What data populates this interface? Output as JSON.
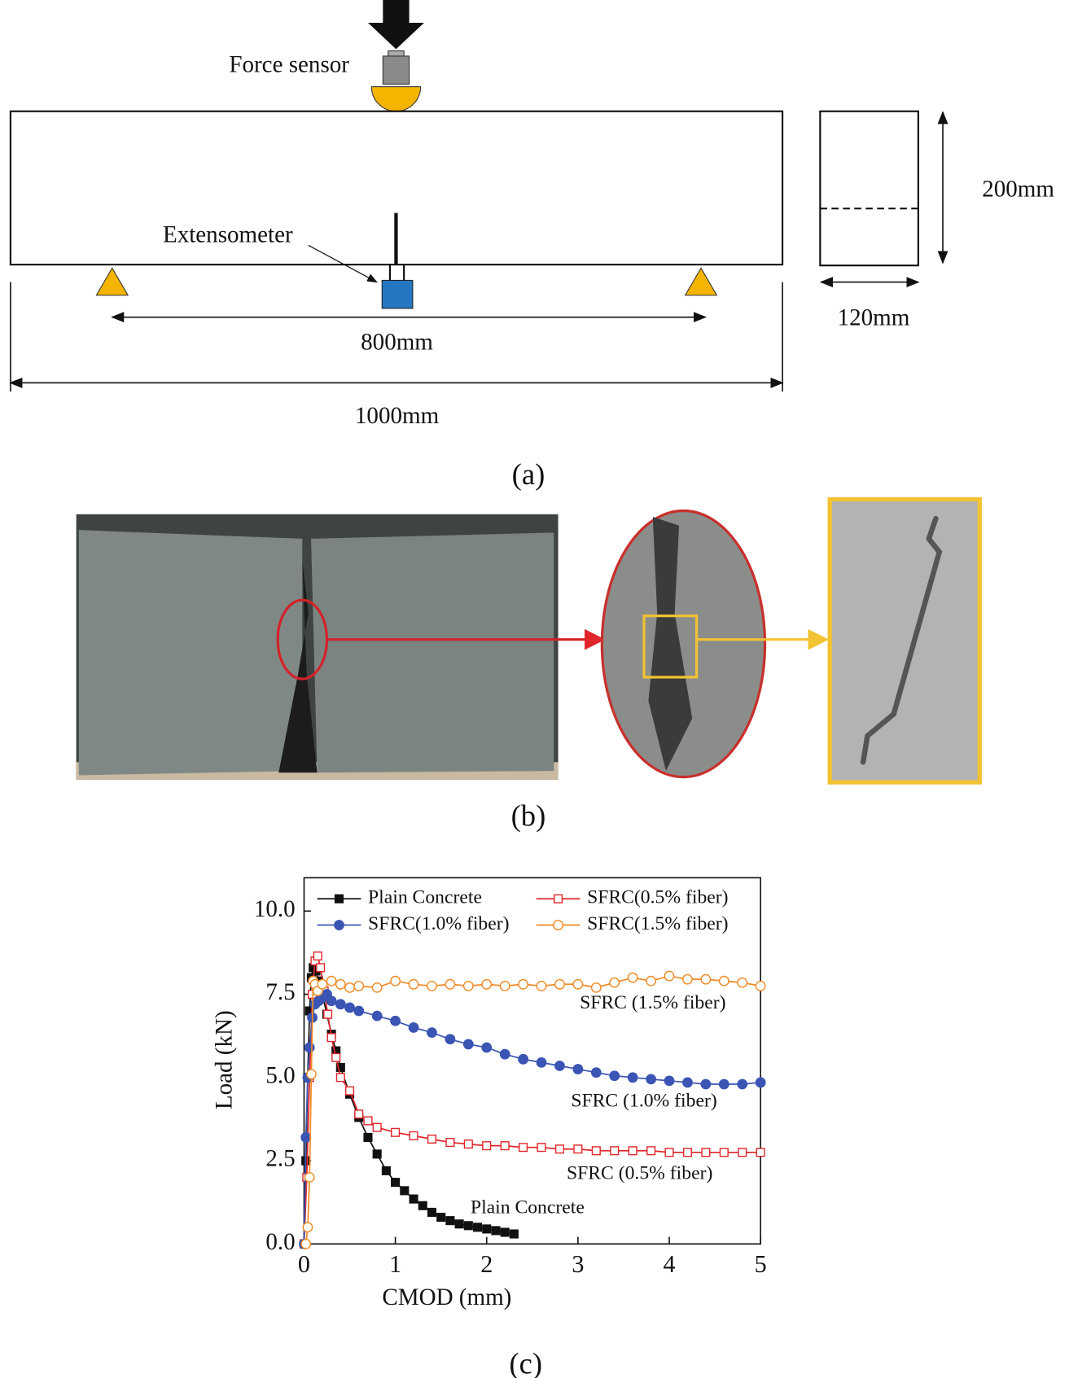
{
  "diagram": {
    "force_label": "Force sensor",
    "extensometer_label": "Extensometer",
    "span": "800mm",
    "length": "1000mm",
    "height": "200mm",
    "width": "120mm",
    "caption": "(a)"
  },
  "photo": {
    "caption": "(b)"
  },
  "chart_caption": "(c)",
  "chart_data": {
    "type": "line",
    "x_label": "CMOD (mm)",
    "y_label": "Load (kN)",
    "xlim": [
      0,
      5
    ],
    "xticks": [
      0,
      1,
      2,
      3,
      4,
      5
    ],
    "ylim": [
      0,
      11
    ],
    "yticks": [
      {
        "value": 0,
        "label": "0.0"
      },
      2.5,
      {
        "value": 5,
        "label": "5.0"
      },
      7.5,
      {
        "value": 10,
        "label": "10.0"
      }
    ],
    "legend": "top",
    "series": [
      {
        "name": "Plain Concrete",
        "color": "#111111",
        "marker": "square",
        "filled": true,
        "x": [
          0,
          0.02,
          0.04,
          0.06,
          0.08,
          0.1,
          0.13,
          0.16,
          0.2,
          0.25,
          0.3,
          0.35,
          0.4,
          0.5,
          0.6,
          0.7,
          0.8,
          0.9,
          1.0,
          1.1,
          1.2,
          1.3,
          1.4,
          1.5,
          1.6,
          1.7,
          1.8,
          1.9,
          2.0,
          2.1,
          2.2,
          2.3
        ],
        "values": [
          0,
          2.5,
          5,
          7,
          8,
          8.3,
          8.2,
          7.9,
          7.5,
          6.9,
          6.3,
          5.8,
          5.3,
          4.5,
          3.8,
          3.2,
          2.7,
          2.2,
          1.85,
          1.6,
          1.35,
          1.15,
          0.95,
          0.8,
          0.7,
          0.6,
          0.55,
          0.5,
          0.45,
          0.4,
          0.35,
          0.3
        ]
      },
      {
        "name": "SFRC(0.5% fiber)",
        "color": "#e0262b",
        "marker": "square",
        "filled": false,
        "x": [
          0,
          0.03,
          0.06,
          0.09,
          0.12,
          0.15,
          0.18,
          0.22,
          0.26,
          0.3,
          0.35,
          0.4,
          0.5,
          0.6,
          0.7,
          0.8,
          1.0,
          1.2,
          1.4,
          1.6,
          1.8,
          2.0,
          2.2,
          2.4,
          2.6,
          2.8,
          3.0,
          3.2,
          3.4,
          3.6,
          3.8,
          4.0,
          4.2,
          4.4,
          4.6,
          4.8,
          5.0
        ],
        "values": [
          0,
          2.0,
          5.0,
          7.5,
          8.5,
          8.65,
          8.3,
          7.6,
          6.9,
          6.2,
          5.6,
          5.0,
          4.6,
          3.9,
          3.7,
          3.5,
          3.35,
          3.25,
          3.15,
          3.05,
          3.0,
          2.95,
          2.95,
          2.9,
          2.9,
          2.85,
          2.85,
          2.8,
          2.8,
          2.8,
          2.8,
          2.75,
          2.75,
          2.75,
          2.75,
          2.75,
          2.75
        ]
      },
      {
        "name": "SFRC(1.0% fiber)",
        "color": "#3a55b4",
        "marker": "circle",
        "filled": true,
        "x": [
          0,
          0.02,
          0.04,
          0.06,
          0.09,
          0.12,
          0.16,
          0.2,
          0.25,
          0.3,
          0.4,
          0.5,
          0.6,
          0.8,
          1.0,
          1.2,
          1.4,
          1.6,
          1.8,
          2.0,
          2.2,
          2.4,
          2.6,
          2.8,
          3.0,
          3.2,
          3.4,
          3.6,
          3.8,
          4.0,
          4.2,
          4.4,
          4.6,
          4.8,
          5.0
        ],
        "values": [
          0,
          3.2,
          5.0,
          5.9,
          6.8,
          7.2,
          7.3,
          7.4,
          7.5,
          7.3,
          7.2,
          7.1,
          7.0,
          6.85,
          6.7,
          6.5,
          6.35,
          6.15,
          6.0,
          5.9,
          5.7,
          5.55,
          5.45,
          5.35,
          5.25,
          5.15,
          5.05,
          5.0,
          4.95,
          4.9,
          4.85,
          4.8,
          4.8,
          4.8,
          4.85
        ]
      },
      {
        "name": "SFRC(1.5% fiber)",
        "color": "#f08a24",
        "marker": "circle",
        "filled": false,
        "x": [
          0.02,
          0.04,
          0.06,
          0.08,
          0.1,
          0.12,
          0.15,
          0.2,
          0.3,
          0.4,
          0.5,
          0.6,
          0.8,
          1.0,
          1.2,
          1.4,
          1.6,
          1.8,
          2.0,
          2.2,
          2.4,
          2.6,
          2.8,
          3.0,
          3.2,
          3.4,
          3.6,
          3.8,
          4.0,
          4.2,
          4.4,
          4.6,
          4.8,
          5.0
        ],
        "values": [
          0,
          0.5,
          2.0,
          5.1,
          7.9,
          7.8,
          7.6,
          7.8,
          7.9,
          7.8,
          7.7,
          7.75,
          7.7,
          7.9,
          7.8,
          7.75,
          7.8,
          7.75,
          7.8,
          7.75,
          7.8,
          7.75,
          7.8,
          7.8,
          7.7,
          7.85,
          8.0,
          7.9,
          8.05,
          7.95,
          7.95,
          7.9,
          7.85,
          7.75
        ]
      }
    ],
    "annotations": [
      "SFRC (1.5% fiber)",
      "SFRC (1.0% fiber)",
      "SFRC (0.5% fiber)",
      "Plain Concrete"
    ]
  }
}
